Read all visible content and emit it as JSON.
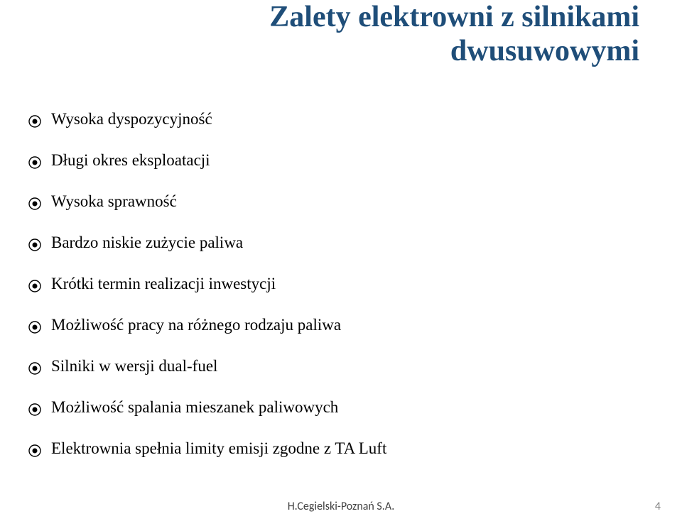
{
  "title": {
    "line1": "Zalety elektrowni z silnikami",
    "line2": "dwusuwowymi",
    "color": "#1f4e79",
    "fontsize": 42
  },
  "bullets": {
    "items": [
      "Wysoka dyspozycyjność",
      "Długi okres eksploatacji",
      "Wysoka sprawność",
      "Bardzo niskie zużycie paliwa",
      "Krótki termin realizacji inwestycji",
      "Możliwość pracy na różnego rodzaju paliwa",
      "Silniki w wersji dual-fuel",
      "Możliwość spalania mieszanek paliwowych",
      "Elektrownia spełnia limity  emisji zgodne z TA Luft"
    ],
    "text_color": "#000000",
    "fontsize": 23,
    "icon_outer_color": "#000000",
    "icon_inner_color": "#000000",
    "icon_outer_radius": 8,
    "icon_inner_radius": 3.5,
    "icon_stroke": 1.4
  },
  "footer": {
    "text": "H.Cegielski-Poznań S.A.",
    "color": "#404040",
    "fontsize": 16,
    "font_family": "Calibri, Arial, sans-serif"
  },
  "pagenum": {
    "text": "4",
    "color": "#808080",
    "fontsize": 16,
    "font_family": "Calibri, Arial, sans-serif"
  }
}
